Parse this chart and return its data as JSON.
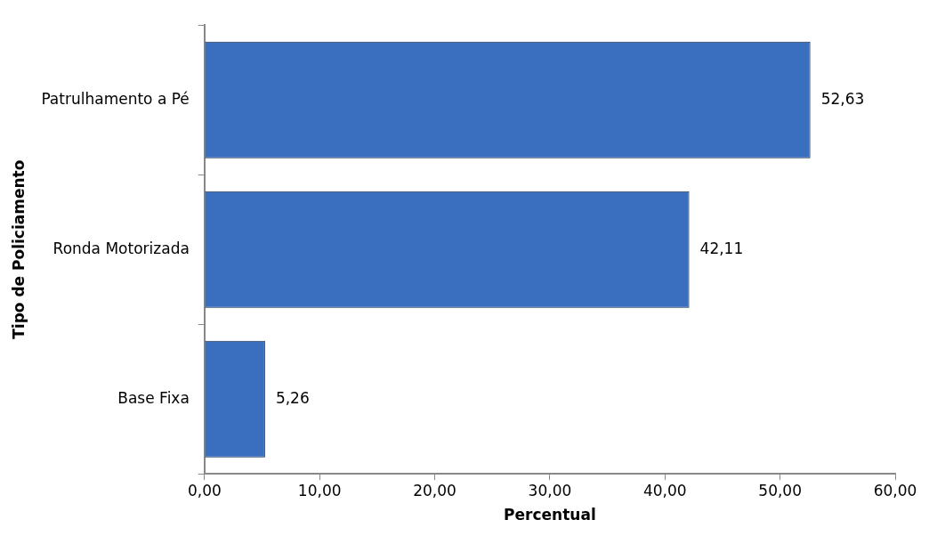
{
  "chart_data": {
    "type": "bar",
    "orientation": "horizontal",
    "xlabel": "Percentual",
    "ylabel": "Tipo de Policiamento",
    "categories": [
      "Patrulhamento a Pé",
      "Ronda Motorizada",
      "Base Fixa"
    ],
    "values": [
      52.63,
      42.11,
      5.26
    ],
    "color": "#3a6fbf",
    "value_labels": [
      "52,63",
      "42,11",
      "5,26"
    ],
    "xlim": [
      0,
      60
    ],
    "xticks": [
      {
        "value": 0,
        "label": "0,00"
      },
      {
        "value": 10,
        "label": "10,00"
      },
      {
        "value": 20,
        "label": "20,00"
      },
      {
        "value": 30,
        "label": "30,00"
      },
      {
        "value": 40,
        "label": "40,00"
      },
      {
        "value": 50,
        "label": "50,00"
      },
      {
        "value": 60,
        "label": "60,00"
      }
    ],
    "grid": false,
    "legend": false
  }
}
